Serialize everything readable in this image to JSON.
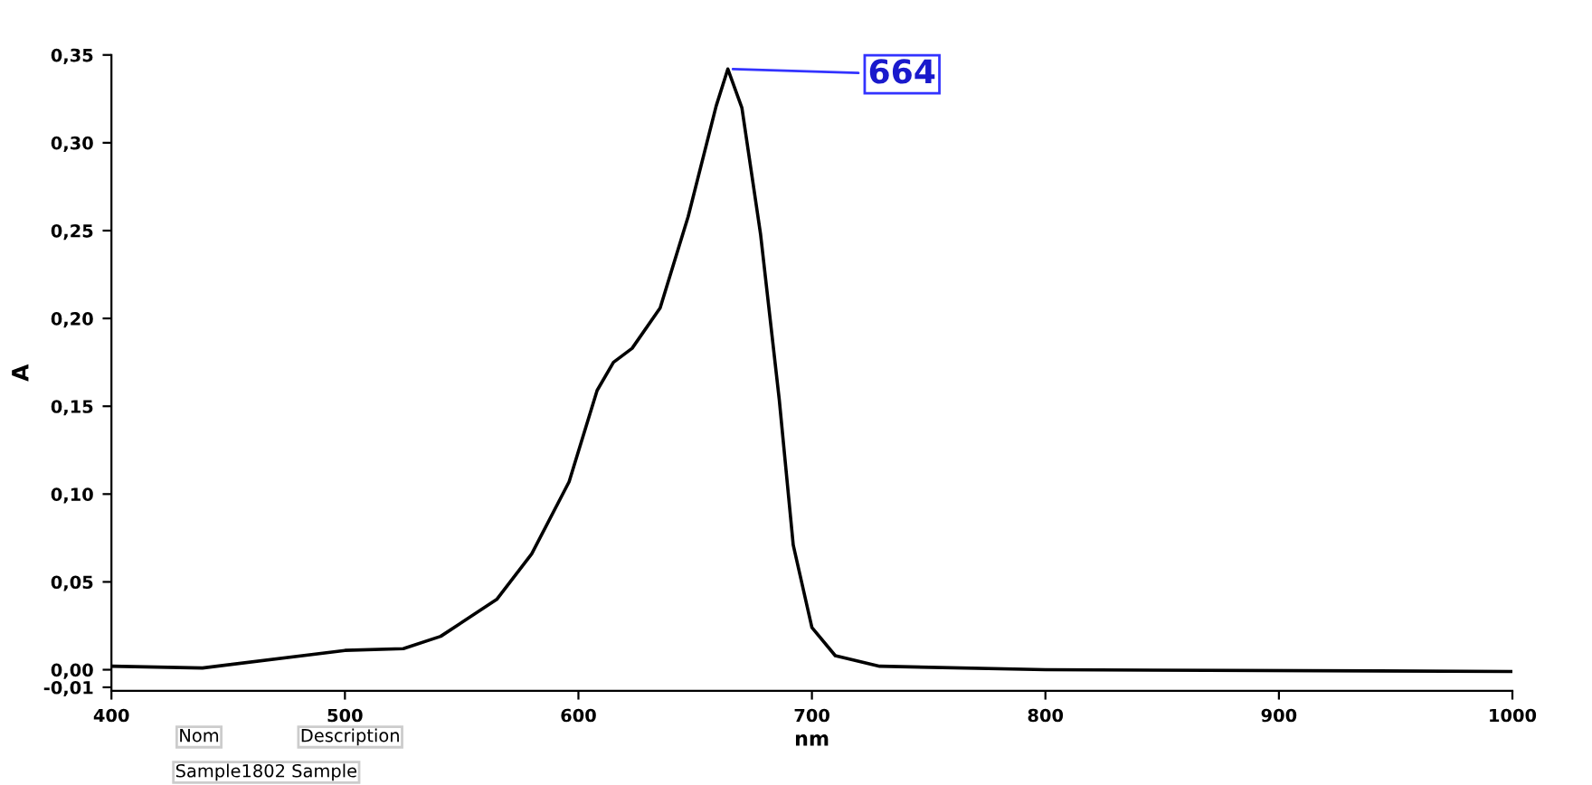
{
  "chart_data": {
    "type": "line",
    "xlabel": "nm",
    "ylabel": "A",
    "xlim": [
      400,
      1000
    ],
    "xticks": [
      400,
      500,
      600,
      700,
      800,
      900,
      1000
    ],
    "ylim": [
      -0.012,
      0.35
    ],
    "yticks": [
      {
        "value": -0.01,
        "label": "-0,01"
      },
      {
        "value": 0,
        "label": "0,00"
      },
      {
        "value": 0.05,
        "label": "0,05"
      },
      {
        "value": 0.1,
        "label": "0,10"
      },
      {
        "value": 0.15,
        "label": "0,15"
      },
      {
        "value": 0.2,
        "label": "0,20"
      },
      {
        "value": 0.25,
        "label": "0,25"
      },
      {
        "value": 0.3,
        "label": "0,30"
      },
      {
        "value": 0.35,
        "label": "0,35"
      }
    ],
    "grid": false,
    "legend": false,
    "marker": "none",
    "line_style": "solid",
    "series": [
      {
        "color": "#000000",
        "x": [
          400,
          439,
          500,
          525,
          541,
          565,
          580,
          596,
          608,
          615,
          623,
          635,
          647,
          659,
          664,
          670,
          678,
          686,
          692,
          700,
          710,
          729,
          800,
          1000
        ],
        "values": [
          0.002,
          0.001,
          0.011,
          0.012,
          0.019,
          0.04,
          0.066,
          0.107,
          0.159,
          0.175,
          0.183,
          0.206,
          0.258,
          0.321,
          0.342,
          0.32,
          0.248,
          0.154,
          0.071,
          0.024,
          0.008,
          0.002,
          0.0,
          -0.001
        ]
      }
    ],
    "annotations": [
      {
        "text": "664",
        "x": 664,
        "y": 0.342
      },
      "Nom",
      "Description",
      "Sample1802 Sample"
    ]
  }
}
